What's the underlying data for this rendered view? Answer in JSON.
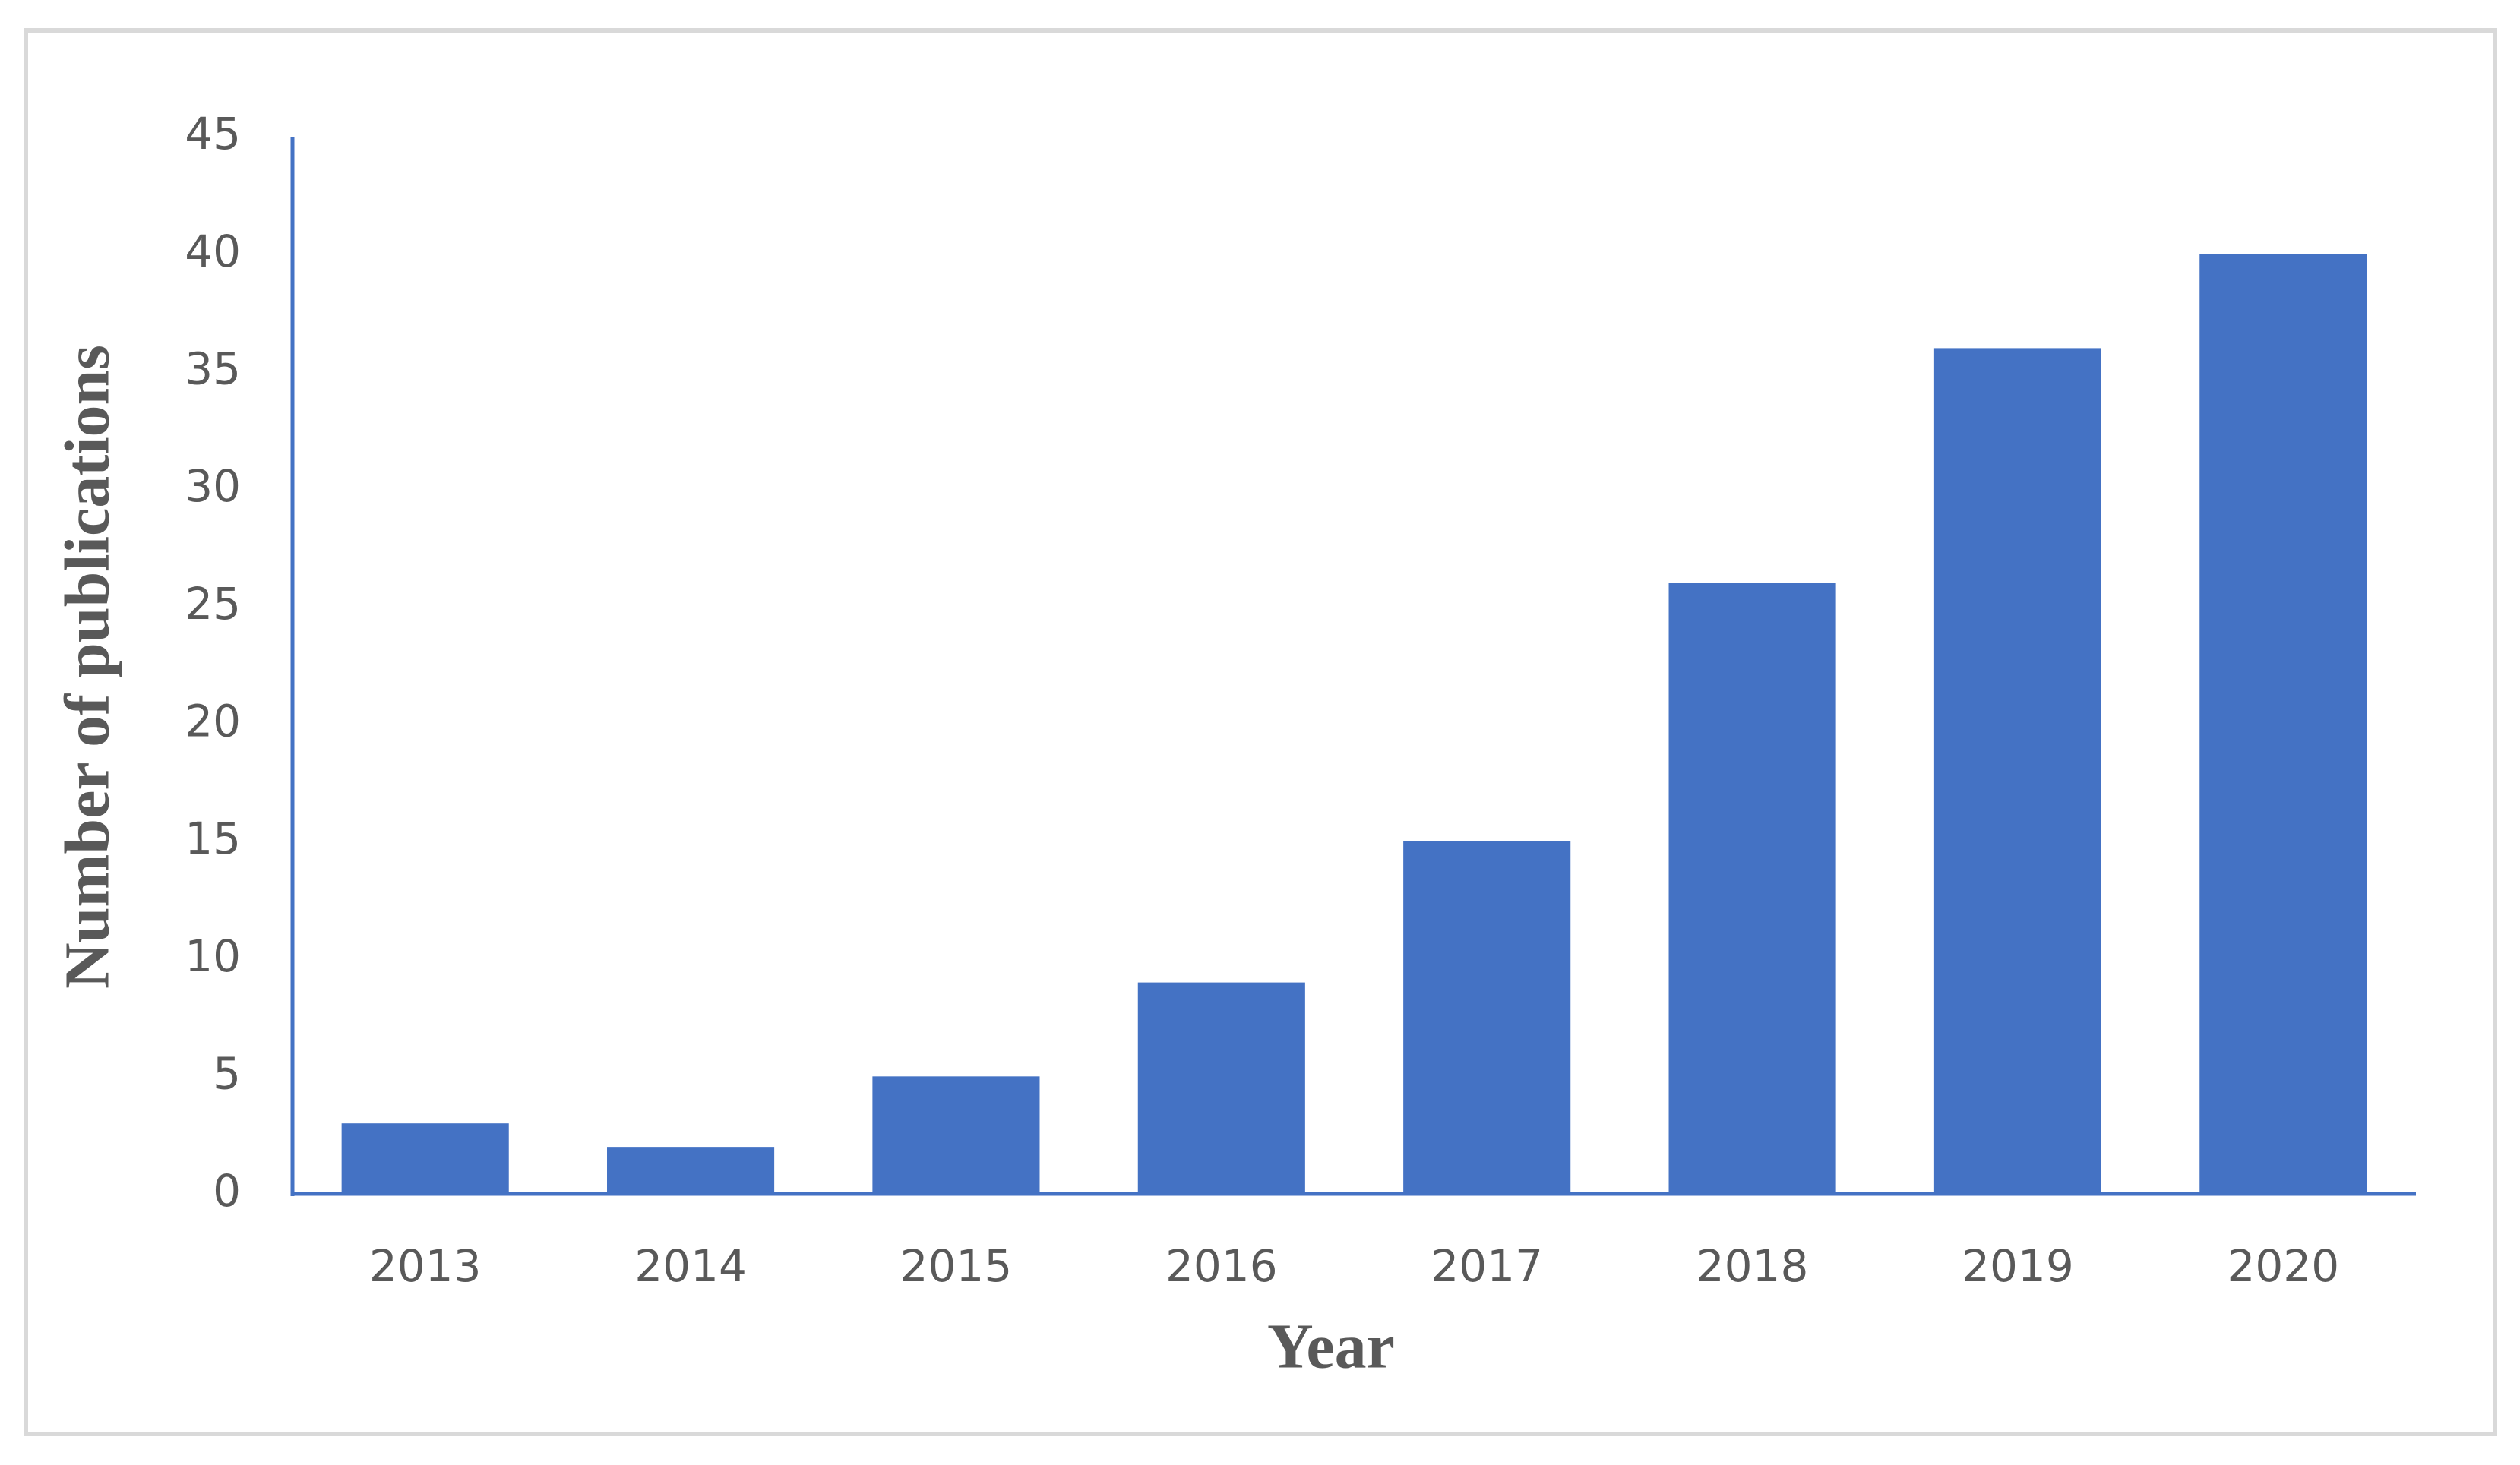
{
  "chart_data": {
    "type": "bar",
    "categories": [
      "2013",
      "2014",
      "2015",
      "2016",
      "2017",
      "2018",
      "2019",
      "2020"
    ],
    "values": [
      3,
      2,
      5,
      9,
      15,
      26,
      36,
      40
    ],
    "color": "#4472c4",
    "xlabel": "Year",
    "ylabel": "Number of publications",
    "ylim": [
      0,
      45
    ],
    "yticks": [
      0,
      5,
      10,
      15,
      20,
      25,
      30,
      35,
      40,
      45
    ],
    "grid": false
  }
}
